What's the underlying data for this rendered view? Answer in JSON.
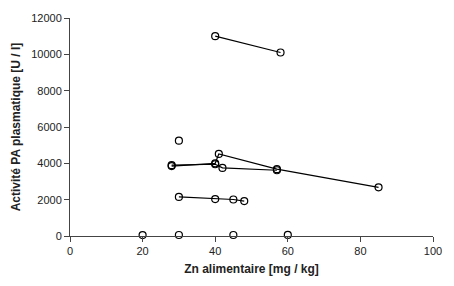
{
  "chart_data": {
    "type": "line",
    "xlabel": "Zn alimentaire [mg / kg]",
    "ylabel": "Activité PA plasmatique [U / l]",
    "xlim": [
      0,
      100
    ],
    "ylim": [
      0,
      12000
    ],
    "xticks": [
      0,
      20,
      40,
      60,
      80,
      100
    ],
    "yticks": [
      0,
      2000,
      4000,
      6000,
      8000,
      10000,
      12000
    ],
    "grid": false,
    "color": "black",
    "marker": "open circle",
    "series": [
      {
        "type": "line",
        "x": [
          40,
          58
        ],
        "values": [
          11000,
          10100
        ]
      },
      {
        "type": "scatter",
        "x": [
          30
        ],
        "values": [
          5250
        ]
      },
      {
        "type": "line",
        "x": [
          28,
          40,
          41,
          57,
          85
        ],
        "values": [
          3850,
          4000,
          4520,
          3680,
          2680
        ]
      },
      {
        "type": "line",
        "x": [
          28,
          40,
          42,
          57
        ],
        "values": [
          3900,
          3950,
          3750,
          3620
        ]
      },
      {
        "type": "line",
        "x": [
          30,
          40,
          45,
          48
        ],
        "values": [
          2150,
          2030,
          2010,
          1920
        ]
      },
      {
        "type": "scatter",
        "x": [
          20,
          30,
          45,
          60
        ],
        "values": [
          50,
          55,
          55,
          60
        ]
      }
    ]
  }
}
